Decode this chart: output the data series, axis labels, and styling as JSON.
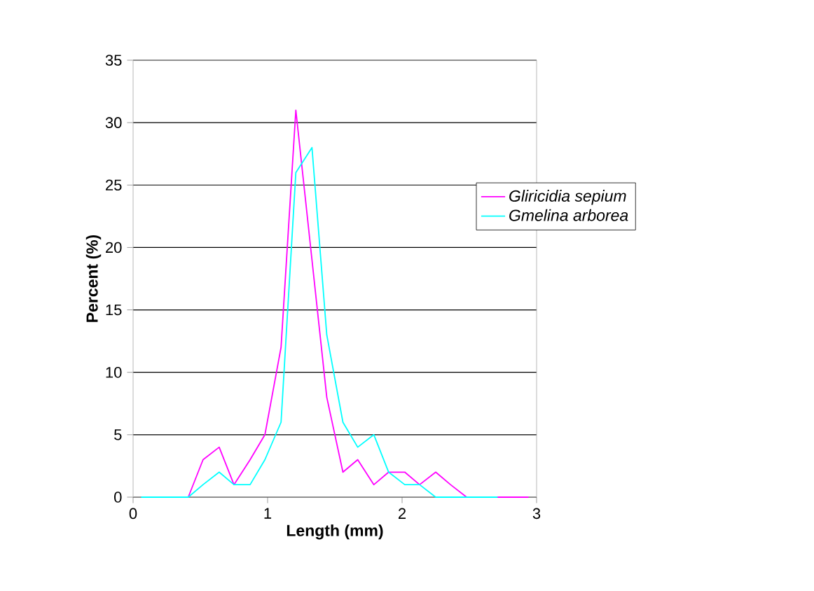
{
  "chart_data": {
    "type": "line",
    "xlabel": "Length (mm)",
    "ylabel": "Percent (%)",
    "xlim": [
      0,
      3
    ],
    "xticks": [
      0,
      1,
      2,
      3
    ],
    "ylim": [
      0,
      35
    ],
    "yticks": [
      0,
      5,
      10,
      15,
      20,
      25,
      30,
      35
    ],
    "grid": "y",
    "legend": "right",
    "marker": "none",
    "line_style": "solid",
    "x": [
      0.06,
      0.18,
      0.29,
      0.41,
      0.52,
      0.64,
      0.75,
      0.87,
      0.98,
      1.1,
      1.21,
      1.33,
      1.44,
      1.56,
      1.67,
      1.79,
      1.9,
      2.02,
      2.13,
      2.25,
      2.36,
      2.48,
      2.59,
      2.71,
      2.82,
      2.94
    ],
    "series": [
      {
        "name": "Gliricidia sepium",
        "color": "#ff00ff",
        "values": [
          null,
          null,
          0,
          0,
          3,
          4,
          1,
          3,
          5,
          12,
          31,
          19,
          8,
          2,
          3,
          1,
          2,
          2,
          1,
          2,
          1,
          0,
          0,
          0,
          0,
          0
        ]
      },
      {
        "name": "Gmelina arborea",
        "color": "#00ffff",
        "values": [
          0,
          0,
          0,
          0,
          1,
          2,
          1,
          1,
          3,
          6,
          26,
          28,
          13,
          6,
          4,
          5,
          2,
          1,
          1,
          0,
          0,
          0,
          0,
          0,
          null,
          null
        ]
      }
    ]
  }
}
